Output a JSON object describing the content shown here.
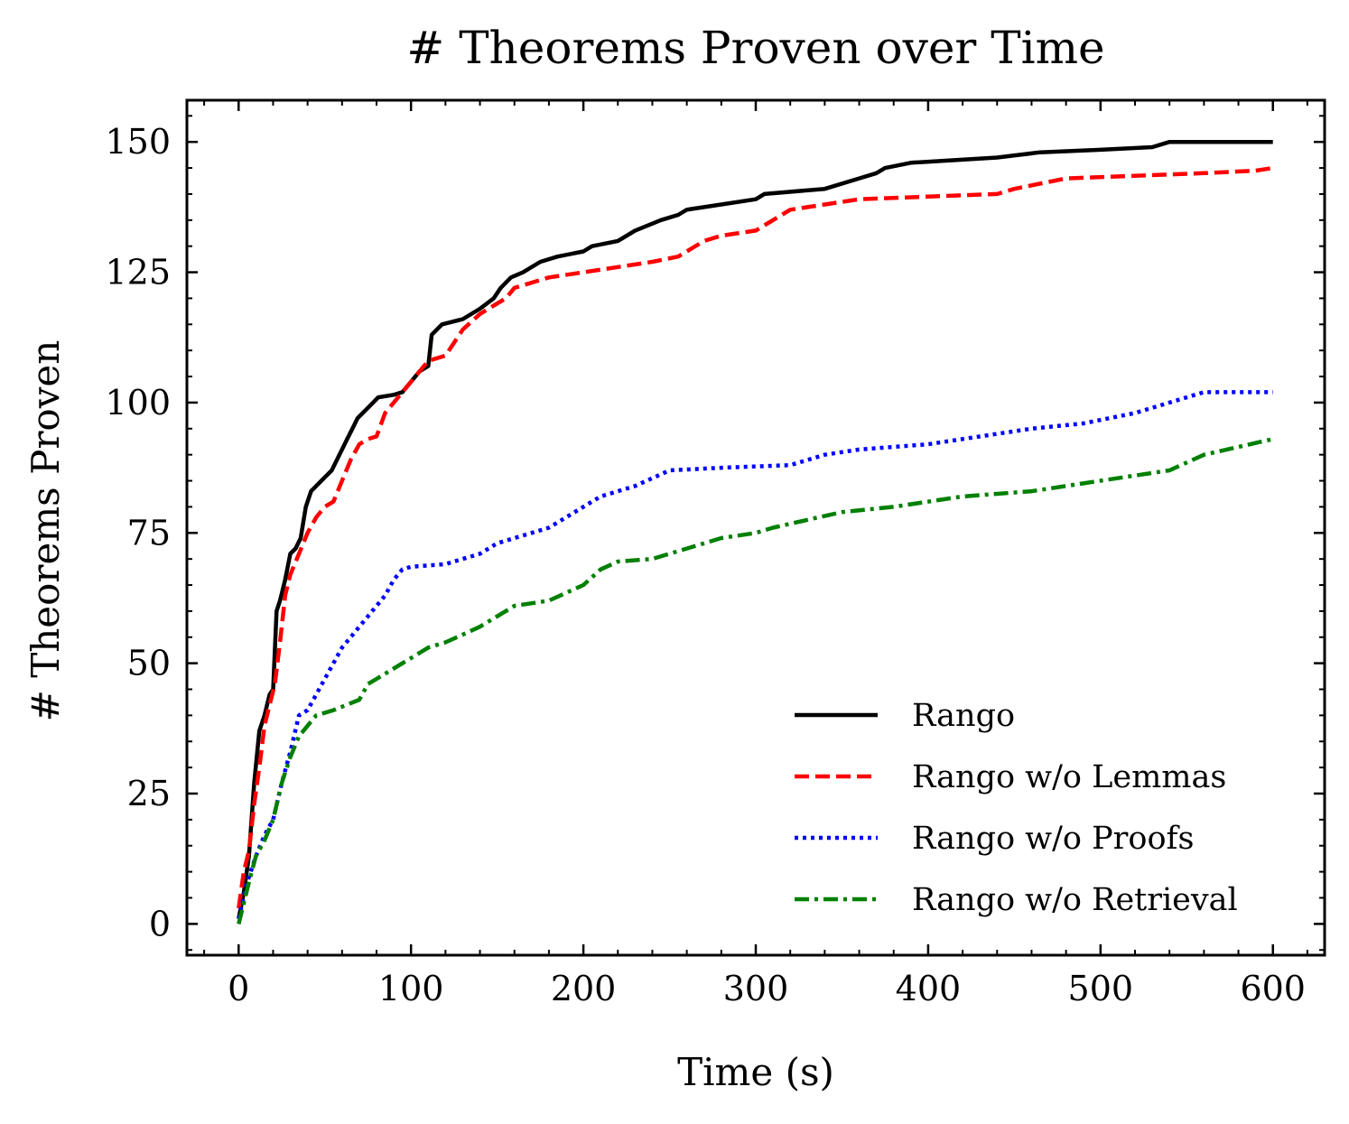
{
  "chart_data": {
    "type": "line",
    "title": "# Theorems Proven over Time",
    "xlabel": "Time (s)",
    "ylabel": "# Theorems Proven",
    "xlim": [
      -30,
      630
    ],
    "ylim": [
      -6,
      158
    ],
    "xticks": [
      0,
      100,
      200,
      300,
      400,
      500,
      600
    ],
    "yticks": [
      0,
      25,
      50,
      75,
      100,
      125,
      150
    ],
    "xtick_labels": [
      "0",
      "100",
      "200",
      "300",
      "400",
      "500",
      "600"
    ],
    "ytick_labels": [
      "0",
      "25",
      "50",
      "75",
      "100",
      "125",
      "150"
    ],
    "legend_position": "lower-right",
    "series": [
      {
        "name": "Rango",
        "color": "#000000",
        "style": "solid",
        "points": [
          [
            0,
            1
          ],
          [
            3,
            6
          ],
          [
            6,
            13
          ],
          [
            9,
            27
          ],
          [
            12,
            37
          ],
          [
            15,
            40
          ],
          [
            18,
            44
          ],
          [
            20,
            45
          ],
          [
            22,
            60
          ],
          [
            24,
            62
          ],
          [
            27,
            66
          ],
          [
            30,
            71
          ],
          [
            33,
            72
          ],
          [
            36,
            74
          ],
          [
            39,
            80
          ],
          [
            42,
            83
          ],
          [
            45,
            84
          ],
          [
            48,
            85
          ],
          [
            51,
            86
          ],
          [
            54,
            87
          ],
          [
            57,
            89
          ],
          [
            60,
            91
          ],
          [
            63,
            93
          ],
          [
            66,
            95
          ],
          [
            69,
            97
          ],
          [
            72,
            98
          ],
          [
            75,
            99
          ],
          [
            78,
            100
          ],
          [
            81,
            101
          ],
          [
            90,
            101.5
          ],
          [
            95,
            102
          ],
          [
            100,
            104
          ],
          [
            105,
            106
          ],
          [
            110,
            107
          ],
          [
            112,
            113
          ],
          [
            118,
            115
          ],
          [
            130,
            116
          ],
          [
            140,
            118
          ],
          [
            148,
            120
          ],
          [
            152,
            122
          ],
          [
            155,
            123
          ],
          [
            158,
            124
          ],
          [
            165,
            125
          ],
          [
            175,
            127
          ],
          [
            185,
            128
          ],
          [
            200,
            129
          ],
          [
            205,
            130
          ],
          [
            220,
            131
          ],
          [
            230,
            133
          ],
          [
            245,
            135
          ],
          [
            255,
            136
          ],
          [
            260,
            137
          ],
          [
            280,
            138
          ],
          [
            300,
            139
          ],
          [
            305,
            140
          ],
          [
            340,
            141
          ],
          [
            360,
            143
          ],
          [
            370,
            144
          ],
          [
            375,
            145
          ],
          [
            390,
            146
          ],
          [
            440,
            147
          ],
          [
            465,
            148
          ],
          [
            500,
            148.5
          ],
          [
            530,
            149
          ],
          [
            540,
            150
          ],
          [
            600,
            150
          ]
        ]
      },
      {
        "name": "Rango w/o Lemmas",
        "color": "#ff0000",
        "style": "dashed",
        "points": [
          [
            0,
            3
          ],
          [
            3,
            10
          ],
          [
            6,
            14
          ],
          [
            9,
            23
          ],
          [
            12,
            30
          ],
          [
            15,
            38
          ],
          [
            18,
            42
          ],
          [
            21,
            46
          ],
          [
            24,
            54
          ],
          [
            27,
            63
          ],
          [
            30,
            67
          ],
          [
            35,
            71
          ],
          [
            40,
            75
          ],
          [
            45,
            78
          ],
          [
            50,
            80
          ],
          [
            55,
            81
          ],
          [
            60,
            85
          ],
          [
            65,
            89
          ],
          [
            70,
            92
          ],
          [
            75,
            93
          ],
          [
            80,
            93.5
          ],
          [
            85,
            98
          ],
          [
            95,
            102
          ],
          [
            100,
            104
          ],
          [
            110,
            108
          ],
          [
            120,
            109
          ],
          [
            130,
            114
          ],
          [
            140,
            117
          ],
          [
            150,
            119
          ],
          [
            155,
            120
          ],
          [
            160,
            122
          ],
          [
            180,
            124
          ],
          [
            200,
            125
          ],
          [
            220,
            126
          ],
          [
            240,
            127
          ],
          [
            255,
            128
          ],
          [
            270,
            131
          ],
          [
            280,
            132
          ],
          [
            300,
            133
          ],
          [
            310,
            135
          ],
          [
            320,
            137
          ],
          [
            340,
            138
          ],
          [
            360,
            139
          ],
          [
            400,
            139.5
          ],
          [
            440,
            140
          ],
          [
            450,
            141
          ],
          [
            480,
            143
          ],
          [
            520,
            143.5
          ],
          [
            560,
            144
          ],
          [
            590,
            144.5
          ],
          [
            600,
            145
          ]
        ]
      },
      {
        "name": "Rango w/o Proofs",
        "color": "#0000ff",
        "style": "dotted",
        "points": [
          [
            0,
            1
          ],
          [
            5,
            8
          ],
          [
            10,
            13
          ],
          [
            15,
            17
          ],
          [
            20,
            20
          ],
          [
            25,
            27
          ],
          [
            30,
            33
          ],
          [
            35,
            40
          ],
          [
            40,
            41
          ],
          [
            45,
            44
          ],
          [
            50,
            47
          ],
          [
            55,
            50
          ],
          [
            60,
            53
          ],
          [
            65,
            55
          ],
          [
            70,
            57
          ],
          [
            75,
            59
          ],
          [
            80,
            61
          ],
          [
            85,
            63
          ],
          [
            90,
            66
          ],
          [
            95,
            68
          ],
          [
            100,
            68.5
          ],
          [
            120,
            69
          ],
          [
            130,
            70
          ],
          [
            140,
            71
          ],
          [
            150,
            73
          ],
          [
            160,
            74
          ],
          [
            170,
            75
          ],
          [
            180,
            76
          ],
          [
            190,
            78
          ],
          [
            200,
            80
          ],
          [
            210,
            82
          ],
          [
            230,
            84
          ],
          [
            250,
            87
          ],
          [
            280,
            87.5
          ],
          [
            320,
            88
          ],
          [
            340,
            90
          ],
          [
            360,
            91
          ],
          [
            400,
            92
          ],
          [
            420,
            93
          ],
          [
            460,
            95
          ],
          [
            490,
            96
          ],
          [
            520,
            98
          ],
          [
            540,
            100
          ],
          [
            550,
            101
          ],
          [
            560,
            102
          ],
          [
            600,
            102
          ]
        ]
      },
      {
        "name": "Rango w/o Retrieval",
        "color": "#008000",
        "style": "dashdot",
        "points": [
          [
            0,
            0
          ],
          [
            3,
            4
          ],
          [
            6,
            8
          ],
          [
            10,
            13
          ],
          [
            15,
            16
          ],
          [
            20,
            20
          ],
          [
            25,
            27
          ],
          [
            30,
            32
          ],
          [
            35,
            36
          ],
          [
            40,
            38
          ],
          [
            45,
            40
          ],
          [
            55,
            41
          ],
          [
            70,
            43
          ],
          [
            75,
            46
          ],
          [
            80,
            47
          ],
          [
            90,
            49
          ],
          [
            100,
            51
          ],
          [
            110,
            53
          ],
          [
            120,
            54
          ],
          [
            130,
            55.5
          ],
          [
            140,
            57
          ],
          [
            150,
            59
          ],
          [
            160,
            61
          ],
          [
            180,
            62
          ],
          [
            190,
            63.5
          ],
          [
            200,
            65
          ],
          [
            210,
            68
          ],
          [
            220,
            69.5
          ],
          [
            240,
            70
          ],
          [
            260,
            72
          ],
          [
            280,
            74
          ],
          [
            300,
            75
          ],
          [
            310,
            76
          ],
          [
            330,
            77.5
          ],
          [
            350,
            79
          ],
          [
            380,
            80
          ],
          [
            420,
            82
          ],
          [
            460,
            83
          ],
          [
            500,
            85
          ],
          [
            540,
            87
          ],
          [
            560,
            90
          ],
          [
            600,
            93
          ]
        ]
      }
    ]
  }
}
